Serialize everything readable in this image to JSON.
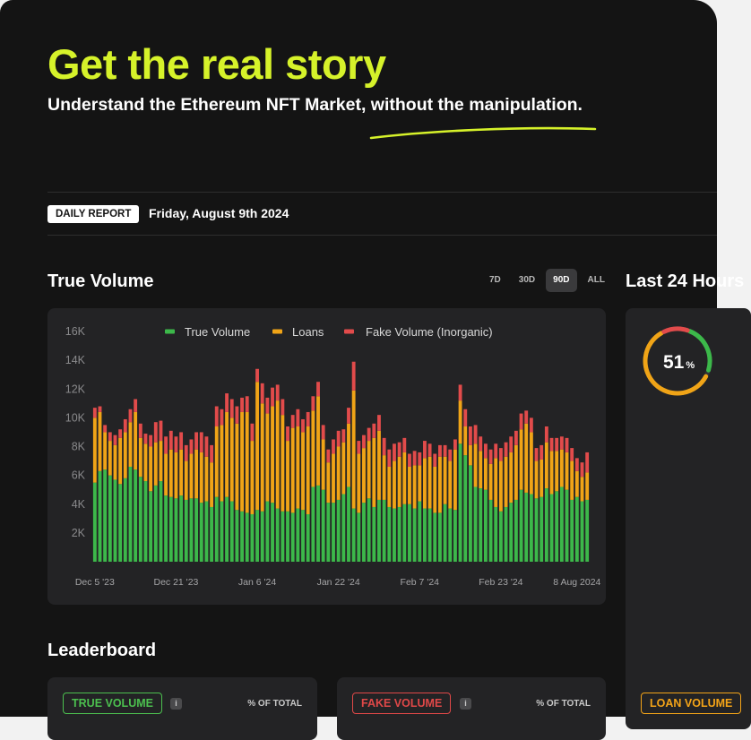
{
  "hero": {
    "title": "Get the real story",
    "subtitle": "Understand the Ethereum NFT Market, without the manipulation."
  },
  "report": {
    "badge": "DAILY REPORT",
    "date": "Friday, August 9th 2024"
  },
  "true_volume": {
    "title": "True Volume",
    "ranges": [
      "7D",
      "30D",
      "90D",
      "ALL"
    ],
    "active_range": "90D"
  },
  "last24": {
    "title": "Last 24 Hours"
  },
  "gauge": {
    "value": "51",
    "unit": "%",
    "fraction": 0.51
  },
  "leaderboard": {
    "title": "Leaderboard",
    "cards": [
      {
        "label": "TRUE VOLUME",
        "col": "% OF TOTAL"
      },
      {
        "label": "FAKE VOLUME",
        "col": "% OF TOTAL"
      },
      {
        "label": "LOAN VOLUME"
      }
    ]
  },
  "colors": {
    "accent": "#d6f22a",
    "true": "#3cb84a",
    "loans": "#f0a417",
    "fake": "#e24b4b"
  },
  "chart_data": {
    "type": "bar",
    "stacked": true,
    "series_names": [
      "True Volume",
      "Loans",
      "Fake Volume (Inorganic)"
    ],
    "ylim": [
      0,
      16000
    ],
    "yticks": [
      2000,
      4000,
      6000,
      8000,
      10000,
      12000,
      14000,
      16000
    ],
    "ytick_labels": [
      "2K",
      "4K",
      "6K",
      "8K",
      "10K",
      "12K",
      "14K",
      "16K"
    ],
    "grid": false,
    "legend": "top",
    "xtick_labels": [
      {
        "i": 0,
        "label": "Dec 5 '23"
      },
      {
        "i": 16,
        "label": "Dec 21 '23"
      },
      {
        "i": 32,
        "label": "Jan 6 '24"
      },
      {
        "i": 48,
        "label": "Jan 22 '24"
      },
      {
        "i": 64,
        "label": "Feb 7 '24"
      },
      {
        "i": 80,
        "label": "Feb 23 '24"
      },
      {
        "i": 95,
        "label": "8 Aug 2024"
      }
    ],
    "true_volume": [
      5500,
      6300,
      6400,
      6000,
      5700,
      5400,
      5800,
      6600,
      6400,
      5900,
      5600,
      4900,
      5300,
      5600,
      4600,
      4500,
      4400,
      4600,
      4300,
      4400,
      4400,
      4100,
      4200,
      3800,
      4500,
      4200,
      4500,
      4200,
      3600,
      3500,
      3400,
      3300,
      3600,
      3500,
      4200,
      4100,
      3700,
      3500,
      3500,
      3400,
      3700,
      3600,
      3300,
      5200,
      5300,
      5000,
      4100,
      4100,
      4300,
      4700,
      5200,
      3700,
      3400,
      4100,
      4400,
      3800,
      4300,
      4300,
      3800,
      3700,
      3800,
      4000,
      4000,
      3700,
      4200,
      3700,
      3700,
      3400,
      3400,
      4000,
      3700,
      3600,
      8200,
      7400,
      6700,
      5200,
      5100,
      5000,
      4300,
      3800,
      3500,
      3800,
      4100,
      4300,
      5000,
      4800,
      4700,
      4400,
      4500,
      5100,
      4700,
      4900,
      5200,
      5000,
      4300,
      4500,
      4200,
      4300
    ],
    "loans": [
      4500,
      4100,
      2600,
      2400,
      2400,
      3200,
      3200,
      3100,
      4000,
      2700,
      2600,
      3100,
      3000,
      2800,
      2900,
      3300,
      3200,
      3200,
      2700,
      3100,
      3400,
      3500,
      3100,
      3100,
      4900,
      5300,
      5900,
      5800,
      6000,
      6900,
      7000,
      5100,
      8900,
      7500,
      6100,
      6700,
      7500,
      6700,
      4900,
      5900,
      5700,
      5400,
      6100,
      5300,
      6200,
      3500,
      2800,
      3400,
      3700,
      3600,
      4400,
      8200,
      4100,
      3800,
      4000,
      4800,
      4800,
      3100,
      2800,
      3300,
      3500,
      3600,
      2600,
      3000,
      2500,
      3500,
      3600,
      3200,
      3900,
      3300,
      3300,
      4200,
      3000,
      2000,
      1400,
      3000,
      2600,
      2200,
      2500,
      3400,
      3500,
      3500,
      3500,
      3800,
      4200,
      4800,
      4300,
      2600,
      2600,
      3200,
      3000,
      2800,
      2600,
      2600,
      2700,
      1800,
      1700,
      1900
    ],
    "fake_volume": [
      700,
      400,
      500,
      600,
      700,
      600,
      900,
      900,
      900,
      1000,
      700,
      800,
      1400,
      1400,
      1200,
      1300,
      1100,
      1200,
      1100,
      1000,
      1200,
      1400,
      1400,
      1200,
      1400,
      1100,
      1300,
      1300,
      1200,
      1000,
      1100,
      1200,
      900,
      1400,
      1100,
      1300,
      1100,
      1100,
      1000,
      900,
      1200,
      900,
      1000,
      1000,
      1000,
      1000,
      900,
      1000,
      1100,
      900,
      1100,
      2000,
      900,
      900,
      900,
      1000,
      1100,
      1200,
      1200,
      1200,
      1000,
      1000,
      900,
      1000,
      900,
      1200,
      900,
      900,
      800,
      800,
      800,
      700,
      1100,
      1200,
      1300,
      1300,
      1000,
      1000,
      1000,
      1000,
      900,
      1000,
      1100,
      1000,
      1100,
      900,
      1000,
      900,
      1000,
      1100,
      900,
      900,
      900,
      1000,
      900,
      900,
      1000,
      1400
    ]
  }
}
